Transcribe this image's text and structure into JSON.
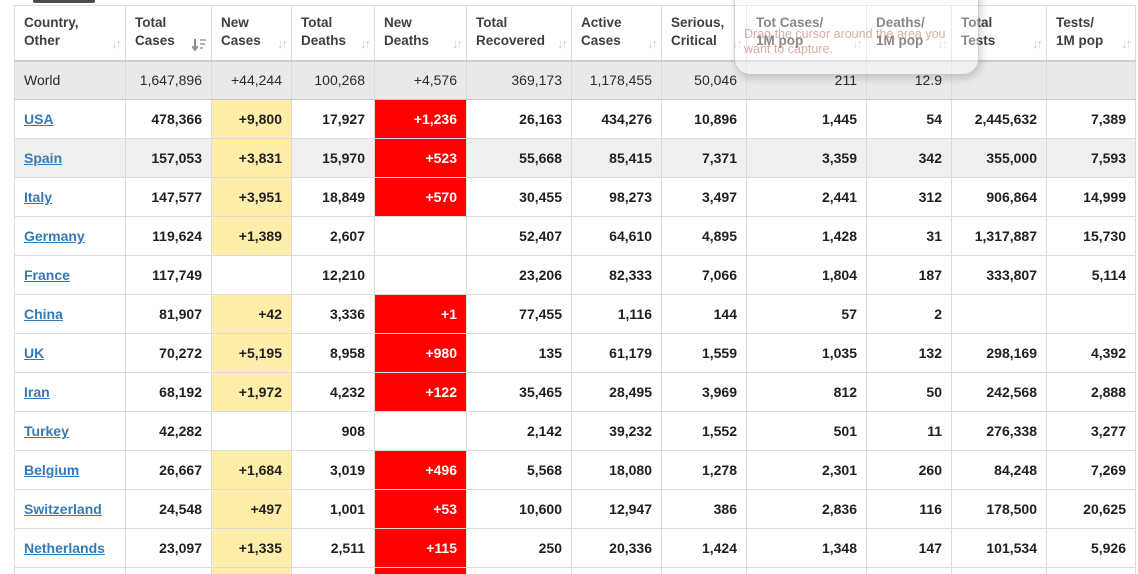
{
  "overlay": {
    "line1": "Drag the cursor around the area you",
    "line2": "want to capture."
  },
  "table": {
    "columns": [
      {
        "id": "country",
        "line1": "Country,",
        "line2": "Other",
        "sort": "inactive"
      },
      {
        "id": "total_cases",
        "line1": "Total",
        "line2": "Cases",
        "sort": "active-desc"
      },
      {
        "id": "new_cases",
        "line1": "New",
        "line2": "Cases",
        "sort": "inactive"
      },
      {
        "id": "total_deaths",
        "line1": "Total",
        "line2": "Deaths",
        "sort": "inactive"
      },
      {
        "id": "new_deaths",
        "line1": "New",
        "line2": "Deaths",
        "sort": "inactive"
      },
      {
        "id": "total_recovered",
        "line1": "Total",
        "line2": "Recovered",
        "sort": "inactive"
      },
      {
        "id": "active_cases",
        "line1": "Active",
        "line2": "Cases",
        "sort": "inactive"
      },
      {
        "id": "serious_critical",
        "line1": "Serious,",
        "line2": "Critical",
        "sort": "inactive"
      },
      {
        "id": "tot_cases_1m",
        "line1": "Tot Cases/",
        "line2": "1M pop",
        "sort": "inactive"
      },
      {
        "id": "deaths_1m",
        "line1": "Deaths/",
        "line2": "1M pop",
        "sort": "inactive"
      },
      {
        "id": "total_tests",
        "line1": "Total",
        "line2": "Tests",
        "sort": "inactive"
      },
      {
        "id": "tests_1m",
        "line1": "Tests/",
        "line2": "1M pop",
        "sort": "inactive"
      }
    ],
    "world_row": {
      "country": "World",
      "total_cases": "1,647,896",
      "new_cases": "+44,244",
      "total_deaths": "100,268",
      "new_deaths": "+4,576",
      "total_recovered": "369,173",
      "active_cases": "1,178,455",
      "serious_critical": "50,046",
      "tot_cases_1m": "211",
      "deaths_1m": "12.9",
      "total_tests": "",
      "tests_1m": ""
    },
    "rows": [
      {
        "country": "USA",
        "hover": false,
        "total_cases": "478,366",
        "new_cases": "+9,800",
        "total_deaths": "17,927",
        "new_deaths": "+1,236",
        "total_recovered": "26,163",
        "active_cases": "434,276",
        "serious_critical": "10,896",
        "tot_cases_1m": "1,445",
        "deaths_1m": "54",
        "total_tests": "2,445,632",
        "tests_1m": "7,389"
      },
      {
        "country": "Spain",
        "hover": true,
        "total_cases": "157,053",
        "new_cases": "+3,831",
        "total_deaths": "15,970",
        "new_deaths": "+523",
        "total_recovered": "55,668",
        "active_cases": "85,415",
        "serious_critical": "7,371",
        "tot_cases_1m": "3,359",
        "deaths_1m": "342",
        "total_tests": "355,000",
        "tests_1m": "7,593"
      },
      {
        "country": "Italy",
        "hover": false,
        "total_cases": "147,577",
        "new_cases": "+3,951",
        "total_deaths": "18,849",
        "new_deaths": "+570",
        "total_recovered": "30,455",
        "active_cases": "98,273",
        "serious_critical": "3,497",
        "tot_cases_1m": "2,441",
        "deaths_1m": "312",
        "total_tests": "906,864",
        "tests_1m": "14,999"
      },
      {
        "country": "Germany",
        "hover": false,
        "total_cases": "119,624",
        "new_cases": "+1,389",
        "total_deaths": "2,607",
        "new_deaths": "",
        "total_recovered": "52,407",
        "active_cases": "64,610",
        "serious_critical": "4,895",
        "tot_cases_1m": "1,428",
        "deaths_1m": "31",
        "total_tests": "1,317,887",
        "tests_1m": "15,730"
      },
      {
        "country": "France",
        "hover": false,
        "total_cases": "117,749",
        "new_cases": "",
        "total_deaths": "12,210",
        "new_deaths": "",
        "total_recovered": "23,206",
        "active_cases": "82,333",
        "serious_critical": "7,066",
        "tot_cases_1m": "1,804",
        "deaths_1m": "187",
        "total_tests": "333,807",
        "tests_1m": "5,114"
      },
      {
        "country": "China",
        "hover": false,
        "total_cases": "81,907",
        "new_cases": "+42",
        "total_deaths": "3,336",
        "new_deaths": "+1",
        "total_recovered": "77,455",
        "active_cases": "1,116",
        "serious_critical": "144",
        "tot_cases_1m": "57",
        "deaths_1m": "2",
        "total_tests": "",
        "tests_1m": ""
      },
      {
        "country": "UK",
        "hover": false,
        "total_cases": "70,272",
        "new_cases": "+5,195",
        "total_deaths": "8,958",
        "new_deaths": "+980",
        "total_recovered": "135",
        "active_cases": "61,179",
        "serious_critical": "1,559",
        "tot_cases_1m": "1,035",
        "deaths_1m": "132",
        "total_tests": "298,169",
        "tests_1m": "4,392"
      },
      {
        "country": "Iran",
        "hover": false,
        "total_cases": "68,192",
        "new_cases": "+1,972",
        "total_deaths": "4,232",
        "new_deaths": "+122",
        "total_recovered": "35,465",
        "active_cases": "28,495",
        "serious_critical": "3,969",
        "tot_cases_1m": "812",
        "deaths_1m": "50",
        "total_tests": "242,568",
        "tests_1m": "2,888"
      },
      {
        "country": "Turkey",
        "hover": false,
        "total_cases": "42,282",
        "new_cases": "",
        "total_deaths": "908",
        "new_deaths": "",
        "total_recovered": "2,142",
        "active_cases": "39,232",
        "serious_critical": "1,552",
        "tot_cases_1m": "501",
        "deaths_1m": "11",
        "total_tests": "276,338",
        "tests_1m": "3,277"
      },
      {
        "country": "Belgium",
        "hover": false,
        "total_cases": "26,667",
        "new_cases": "+1,684",
        "total_deaths": "3,019",
        "new_deaths": "+496",
        "total_recovered": "5,568",
        "active_cases": "18,080",
        "serious_critical": "1,278",
        "tot_cases_1m": "2,301",
        "deaths_1m": "260",
        "total_tests": "84,248",
        "tests_1m": "7,269"
      },
      {
        "country": "Switzerland",
        "hover": false,
        "total_cases": "24,548",
        "new_cases": "+497",
        "total_deaths": "1,001",
        "new_deaths": "+53",
        "total_recovered": "10,600",
        "active_cases": "12,947",
        "serious_critical": "386",
        "tot_cases_1m": "2,836",
        "deaths_1m": "116",
        "total_tests": "178,500",
        "tests_1m": "20,625"
      },
      {
        "country": "Netherlands",
        "hover": false,
        "total_cases": "23,097",
        "new_cases": "+1,335",
        "total_deaths": "2,511",
        "new_deaths": "+115",
        "total_recovered": "250",
        "active_cases": "20,336",
        "serious_critical": "1,424",
        "tot_cases_1m": "1,348",
        "deaths_1m": "147",
        "total_tests": "101,534",
        "tests_1m": "5,926"
      }
    ]
  },
  "colors": {
    "new_cases_bg": "#ffeeaa",
    "new_deaths_bg": "#ff0000",
    "world_row_bg": "#e9e9e9",
    "hover_row_bg": "#f0f0f0",
    "link": "#337ab7"
  }
}
